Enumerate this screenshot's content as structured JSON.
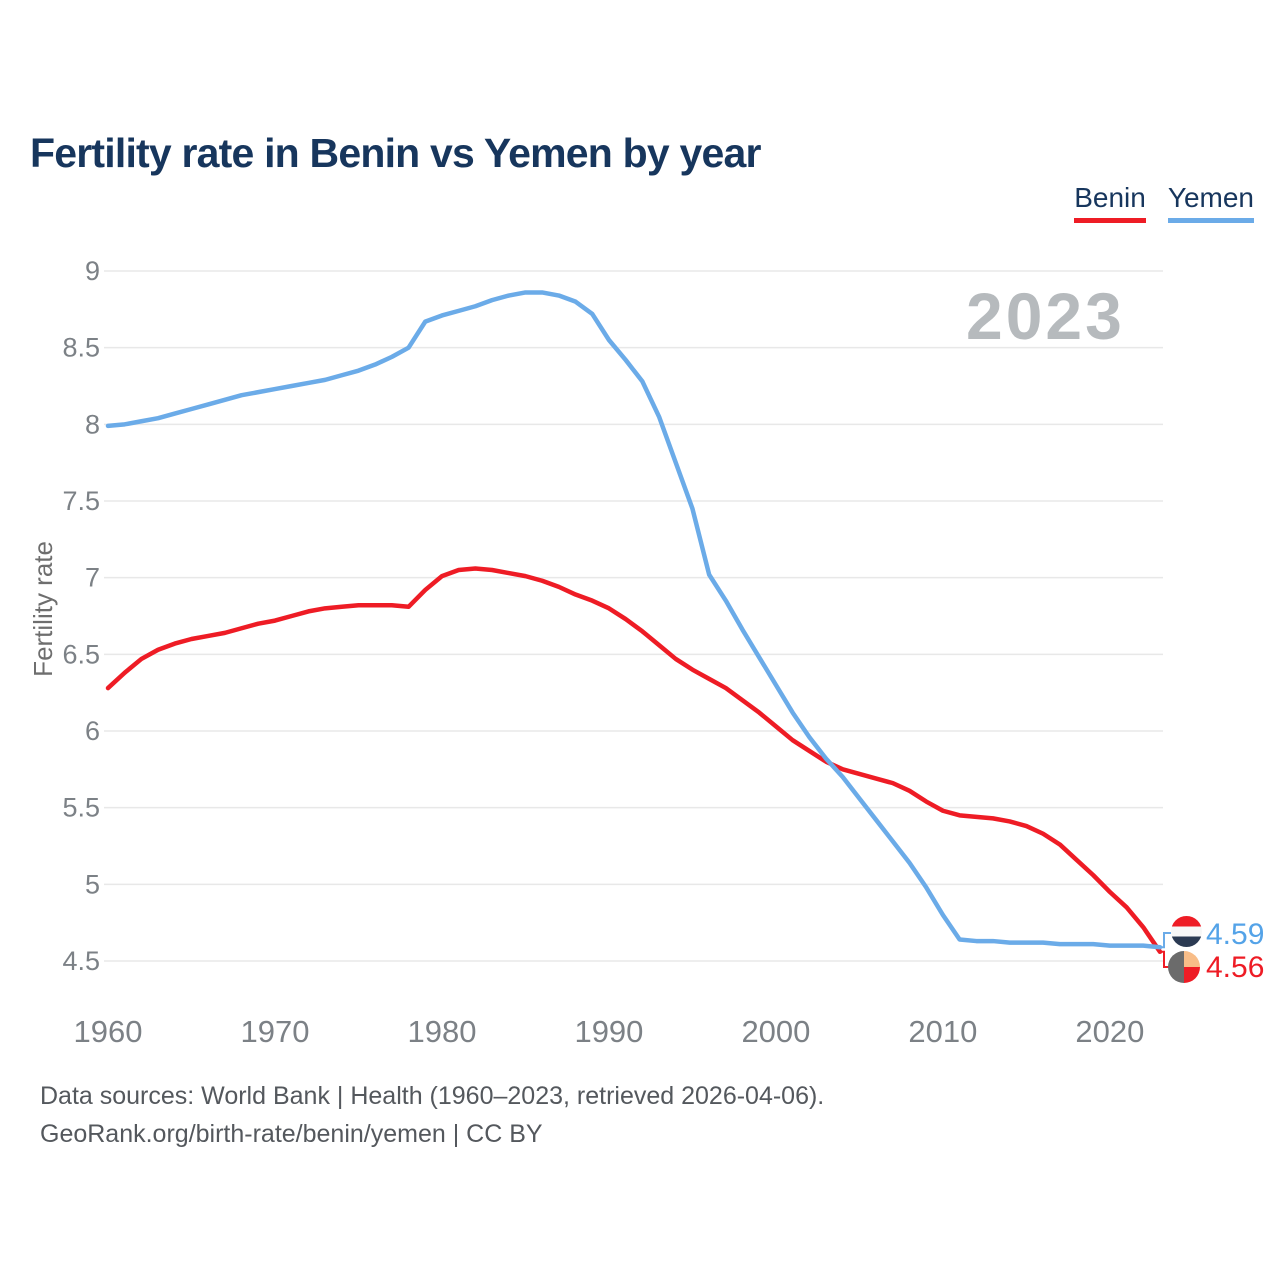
{
  "title": "Fertility rate in Benin vs Yemen by year",
  "watermark": "2023",
  "legend": {
    "items": [
      {
        "label": "Benin",
        "color": "#ee1c25"
      },
      {
        "label": "Yemen",
        "color": "#6babe8"
      }
    ]
  },
  "end_labels": {
    "yemen": {
      "value": "4.59",
      "color": "#54a3e8",
      "flag": "yemen-flag-icon"
    },
    "benin": {
      "value": "4.56",
      "color": "#ee1c25",
      "flag": "benin-flag-icon"
    }
  },
  "footer": {
    "line1": "Data sources: World Bank | Health (1960–2023, retrieved 2026-04-06).",
    "line2": "GeoRank.org/birth-rate/benin/yemen | CC BY"
  },
  "chart_data": {
    "type": "line",
    "title": "Fertility rate in Benin vs Yemen by year",
    "xlabel": "",
    "ylabel": "Fertility rate",
    "ylim": [
      4.5,
      9
    ],
    "xlim": [
      1960,
      2023
    ],
    "yticks": [
      9,
      8.5,
      8,
      7.5,
      7,
      6.5,
      6,
      5.5,
      5,
      4.5
    ],
    "xticks": [
      1960,
      1970,
      1980,
      1990,
      2000,
      2010,
      2020
    ],
    "grid": "horizontal",
    "legend_position": "top-right",
    "x": [
      1960,
      1961,
      1962,
      1963,
      1964,
      1965,
      1966,
      1967,
      1968,
      1969,
      1970,
      1971,
      1972,
      1973,
      1974,
      1975,
      1976,
      1977,
      1978,
      1979,
      1980,
      1981,
      1982,
      1983,
      1984,
      1985,
      1986,
      1987,
      1988,
      1989,
      1990,
      1991,
      1992,
      1993,
      1994,
      1995,
      1996,
      1997,
      1998,
      1999,
      2000,
      2001,
      2002,
      2003,
      2004,
      2005,
      2006,
      2007,
      2008,
      2009,
      2010,
      2011,
      2012,
      2013,
      2014,
      2015,
      2016,
      2017,
      2018,
      2019,
      2020,
      2021,
      2022,
      2023
    ],
    "series": [
      {
        "name": "Benin",
        "color": "#ee1c25",
        "values": [
          6.28,
          6.38,
          6.47,
          6.53,
          6.57,
          6.6,
          6.62,
          6.64,
          6.67,
          6.7,
          6.72,
          6.75,
          6.78,
          6.8,
          6.81,
          6.82,
          6.82,
          6.82,
          6.81,
          6.92,
          7.01,
          7.05,
          7.06,
          7.05,
          7.03,
          7.01,
          6.98,
          6.94,
          6.89,
          6.85,
          6.8,
          6.73,
          6.65,
          6.56,
          6.47,
          6.4,
          6.34,
          6.28,
          6.2,
          6.12,
          6.03,
          5.94,
          5.87,
          5.8,
          5.75,
          5.72,
          5.69,
          5.66,
          5.61,
          5.54,
          5.48,
          5.45,
          5.44,
          5.43,
          5.41,
          5.38,
          5.33,
          5.26,
          5.16,
          5.06,
          4.95,
          4.85,
          4.72,
          4.56
        ]
      },
      {
        "name": "Yemen",
        "color": "#6babe8",
        "values": [
          7.99,
          8.0,
          8.02,
          8.04,
          8.07,
          8.1,
          8.13,
          8.16,
          8.19,
          8.21,
          8.23,
          8.25,
          8.27,
          8.29,
          8.32,
          8.35,
          8.39,
          8.44,
          8.5,
          8.67,
          8.71,
          8.74,
          8.77,
          8.81,
          8.84,
          8.86,
          8.86,
          8.84,
          8.8,
          8.72,
          8.55,
          8.42,
          8.28,
          8.05,
          7.75,
          7.45,
          7.02,
          6.85,
          6.66,
          6.48,
          6.3,
          6.12,
          5.96,
          5.82,
          5.7,
          5.56,
          5.42,
          5.28,
          5.14,
          4.98,
          4.8,
          4.64,
          4.63,
          4.63,
          4.62,
          4.62,
          4.62,
          4.61,
          4.61,
          4.61,
          4.6,
          4.6,
          4.6,
          4.59
        ]
      }
    ]
  }
}
